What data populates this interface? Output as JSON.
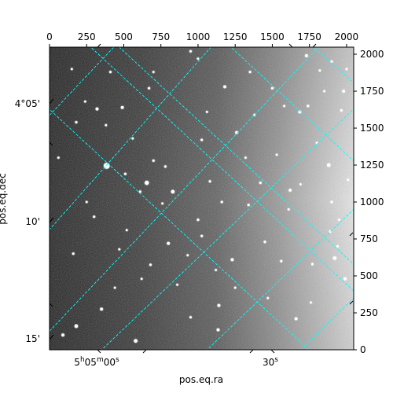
{
  "chart_data": {
    "type": "image",
    "image": {
      "colormap": "gray",
      "background_gradient": "dark-left-to-bright-right"
    },
    "pixel_axes": {
      "top": {
        "range": [
          0,
          2048
        ],
        "ticks": [
          0,
          250,
          500,
          750,
          1000,
          1250,
          1500,
          1750,
          2000
        ]
      },
      "right": {
        "range": [
          0,
          2048
        ],
        "ticks": [
          0,
          250,
          500,
          750,
          1000,
          1250,
          1500,
          1750,
          2000
        ]
      }
    },
    "world_axes": {
      "xlabel": "pos.eq.ra",
      "ylabel": "pos.eq.dec",
      "ra_ticks": [
        {
          "label": "5h05m00s",
          "base": "5",
          "h": "h",
          "m_val": "05",
          "m": "m",
          "s_val": "00",
          "s": "s"
        },
        {
          "label": "30s",
          "s_val": "30",
          "s": "s"
        }
      ],
      "dec_ticks": [
        "4°05'",
        "10'",
        "15'"
      ]
    },
    "grid": {
      "on": true,
      "color": "#00ffff",
      "style": "dashed"
    },
    "stars": [
      [
        385,
        1245,
        5
      ],
      [
        655,
        1130,
        3.5
      ],
      [
        830,
        1070,
        3
      ],
      [
        1260,
        1470,
        2.5
      ],
      [
        1880,
        1250,
        3
      ],
      [
        1620,
        1080,
        2.5
      ],
      [
        1685,
        1610,
        2.5
      ],
      [
        320,
        1630,
        2.5
      ],
      [
        490,
        1640,
        2.5
      ],
      [
        180,
        1540,
        2
      ],
      [
        1180,
        1780,
        2.5
      ],
      [
        1500,
        1770,
        2
      ],
      [
        1025,
        1420,
        2
      ],
      [
        1340,
        980,
        2
      ],
      [
        610,
        1070,
        2
      ],
      [
        510,
        1190,
        2
      ],
      [
        1230,
        610,
        2.5
      ],
      [
        1450,
        730,
        2
      ],
      [
        680,
        575,
        2
      ],
      [
        1025,
        770,
        2
      ],
      [
        1140,
        300,
        2.5
      ],
      [
        1920,
        620,
        3
      ],
      [
        1990,
        480,
        2.5
      ],
      [
        1940,
        700,
        2
      ],
      [
        1770,
        580,
        2
      ],
      [
        1890,
        800,
        2
      ],
      [
        350,
        275,
        2.5
      ],
      [
        580,
        60,
        3
      ],
      [
        950,
        220,
        2
      ],
      [
        1660,
        210,
        2.5
      ],
      [
        1135,
        135,
        2.5
      ],
      [
        180,
        160,
        3
      ],
      [
        90,
        100,
        2.5
      ],
      [
        160,
        650,
        2
      ],
      [
        1000,
        880,
        2
      ],
      [
        1420,
        1130,
        2
      ],
      [
        1740,
        1650,
        2
      ],
      [
        1980,
        1750,
        2.5
      ],
      [
        410,
        1880,
        2
      ],
      [
        670,
        1770,
        2
      ],
      [
        950,
        2020,
        2
      ],
      [
        1350,
        1880,
        2
      ],
      [
        1900,
        1950,
        2
      ],
      [
        300,
        900,
        2
      ],
      [
        800,
        720,
        2.5
      ],
      [
        1560,
        600,
        2
      ],
      [
        1730,
        1990,
        2.5
      ],
      [
        700,
        1280,
        2
      ],
      [
        1160,
        1000,
        2
      ],
      [
        1900,
        1000,
        2
      ],
      [
        1965,
        1620,
        2
      ],
      [
        1080,
        1140,
        2
      ],
      [
        780,
        1240,
        2
      ],
      [
        240,
        1680,
        1.8
      ],
      [
        1580,
        1650,
        1.8
      ],
      [
        1320,
        1300,
        1.8
      ],
      [
        1820,
        1890,
        1.8
      ],
      [
        520,
        810,
        1.8
      ],
      [
        620,
        480,
        1.8
      ],
      [
        860,
        440,
        1.8
      ],
      [
        1760,
        320,
        1.8
      ],
      [
        1610,
        950,
        1.8
      ],
      [
        440,
        420,
        1.8
      ],
      [
        250,
        1000,
        1.8
      ],
      [
        1470,
        350,
        1.8
      ],
      [
        1250,
        420,
        1.8
      ],
      [
        930,
        640,
        1.8
      ],
      [
        1800,
        1400,
        1.8
      ],
      [
        1530,
        1320,
        1.8
      ],
      [
        380,
        1520,
        1.8
      ],
      [
        700,
        1880,
        1.8
      ],
      [
        1000,
        1970,
        1.8
      ],
      [
        2010,
        1150,
        1.8
      ],
      [
        1690,
        1120,
        1.8
      ],
      [
        560,
        1430,
        1.8
      ],
      [
        150,
        1900,
        1.8
      ],
      [
        760,
        990,
        1.8
      ],
      [
        1380,
        1590,
        1.8
      ],
      [
        1120,
        540,
        1.8
      ],
      [
        1950,
        880,
        1.8
      ],
      [
        60,
        1300,
        1.8
      ],
      [
        1850,
        1750,
        1.8
      ],
      [
        470,
        680,
        1.8
      ],
      [
        1060,
        1610,
        1.8
      ],
      [
        2000,
        1900,
        1.8
      ]
    ]
  }
}
